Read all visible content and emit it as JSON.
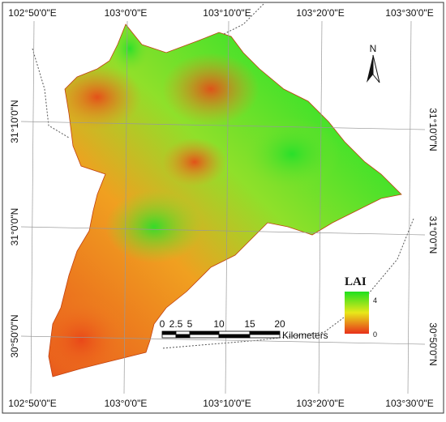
{
  "graticule": {
    "top_labels": [
      "102°50'0\"E",
      "103°0'0\"E",
      "103°10'0\"E",
      "103°20'0\"E",
      "103°30'0\"E"
    ],
    "bottom_labels": [
      "102°50'0\"E",
      "103°0'0\"E",
      "103°10'0\"E",
      "103°20'0\"E",
      "103°30'0\"E"
    ],
    "left_labels": [
      "31°10'0\"N",
      "31°0'0\"N",
      "30°50'0\"N"
    ],
    "right_labels": [
      "31°10'0\"N",
      "31°0'0\"N",
      "30°50'0\"N"
    ]
  },
  "north_arrow": {
    "label": "N"
  },
  "legend": {
    "title": "LAI",
    "max": "4",
    "min": "0"
  },
  "scale_bar": {
    "ticks": [
      "0",
      "2.5",
      "5",
      "10",
      "15",
      "20"
    ],
    "unit": "Kilometers"
  }
}
